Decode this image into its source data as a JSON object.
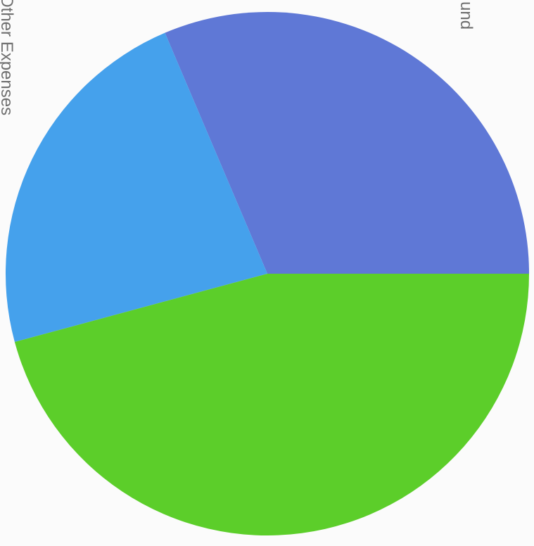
{
  "chart_data": {
    "type": "pie",
    "title": "",
    "slices": [
      {
        "label": "und",
        "value": 31.4,
        "color": "#5f78d6"
      },
      {
        "label": "Other Expenses",
        "value": 22.8,
        "color": "#45a1ec"
      },
      {
        "label": "",
        "value": 45.8,
        "color": "#5cce2a"
      }
    ],
    "start_angle_deg": 0,
    "direction": "counterclockwise"
  }
}
